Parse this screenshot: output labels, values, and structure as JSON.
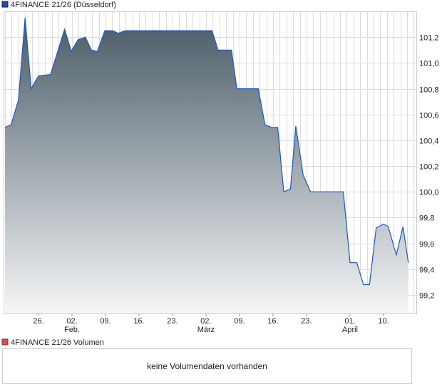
{
  "chart_data": {
    "type": "area",
    "title": "4FINANCE 21/26 (Düsseldorf)",
    "legend": [
      {
        "label": "4FINANCE 21/26 (Düsseldorf)",
        "color": "#1f4fb0"
      }
    ],
    "x_unit": "trading-day index",
    "x": [
      0,
      0.9,
      2,
      3,
      3.9,
      5,
      6.8,
      8.9,
      9.9,
      10.9,
      12,
      12.9,
      13.8,
      14.9,
      16.1,
      16.9,
      17.9,
      30.9,
      31.8,
      33.8,
      34.6,
      37.8,
      38.8,
      39.8,
      40.7,
      41.6,
      42.6,
      43.4,
      44.5,
      45.6,
      50.5,
      51.5,
      52.5,
      53.5,
      54.4,
      55.4,
      56.5,
      57.2,
      58.4,
      59.4,
      60.2
    ],
    "values": [
      100.5,
      100.52,
      100.71,
      101.35,
      100.8,
      100.9,
      100.91,
      101.26,
      101.09,
      101.18,
      101.2,
      101.1,
      101.09,
      101.25,
      101.25,
      101.23,
      101.25,
      101.25,
      101.1,
      101.1,
      100.8,
      100.8,
      100.52,
      100.5,
      100.5,
      100.0,
      100.02,
      100.51,
      100.13,
      100.0,
      100.0,
      99.45,
      99.45,
      99.28,
      99.28,
      99.72,
      99.75,
      99.73,
      99.51,
      99.73,
      99.45
    ],
    "xlim": [
      0,
      61.5
    ],
    "ylim": [
      99.056,
      101.4
    ],
    "y_ticks": [
      101.2,
      101.0,
      100.8,
      100.6,
      100.4,
      100.2,
      100.0,
      99.8,
      99.6,
      99.4,
      99.2
    ],
    "y_tick_labels": [
      "101,2",
      "101,0",
      "100,8",
      "100,6",
      "100,4",
      "100,2",
      "100,0",
      "99,8",
      "99,6",
      "99,4",
      "99,2"
    ],
    "x_ticks": [
      5,
      10,
      15,
      20,
      25,
      30,
      35,
      40,
      45,
      51.5,
      56.5
    ],
    "x_tick_labels": [
      "26.",
      "02.",
      "09.",
      "16.",
      "23.",
      "02.",
      "09.",
      "16.",
      "23.",
      "01.",
      "10."
    ],
    "x_month_labels": [
      {
        "at": 10,
        "label": "Feb."
      },
      {
        "at": 30,
        "label": "März"
      },
      {
        "at": 51.5,
        "label": "April"
      }
    ],
    "grid": true,
    "line_color": "#1a56c8",
    "fill_top": "#4a5b67",
    "fill_bottom": "#f5f6f7"
  },
  "volume": {
    "legend": "4FINANCE 21/26 Volumen",
    "legend_color": "#d9534f",
    "message": "keine Volumendaten vorhanden"
  }
}
